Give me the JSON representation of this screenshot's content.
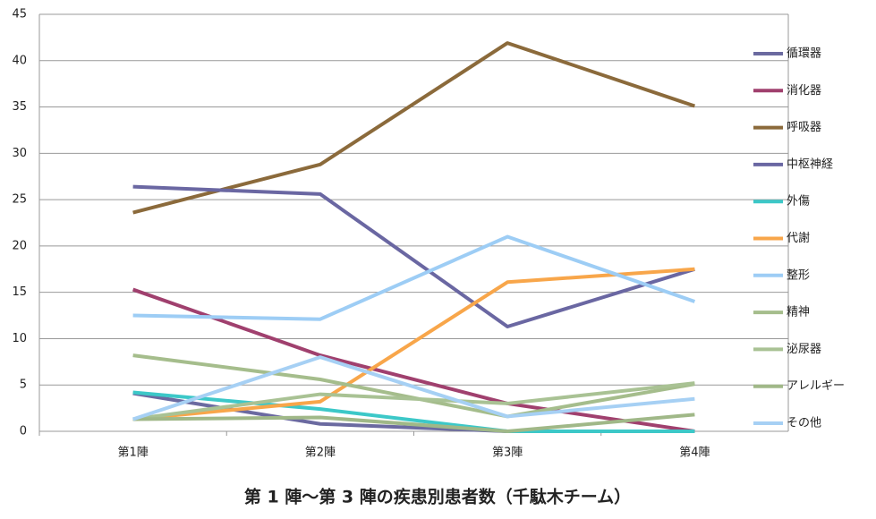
{
  "chart_data": {
    "type": "line",
    "title": "第 1 陣～第 3 陣の疾患別患者数（千駄木チーム）",
    "categories": [
      "第1陣",
      "第2陣",
      "第3陣",
      "第4陣"
    ],
    "series": [
      {
        "name": "循環器",
        "color": "#6b6aa0",
        "values": [
          4.1,
          0.8,
          0,
          0
        ]
      },
      {
        "name": "消化器",
        "color": "#a0406e",
        "values": [
          15.3,
          8.2,
          3.0,
          0
        ]
      },
      {
        "name": "呼吸器",
        "color": "#8b6a3b",
        "values": [
          23.6,
          28.8,
          41.9,
          35.1
        ]
      },
      {
        "name": "中枢神経",
        "color": "#6a67a2",
        "values": [
          26.4,
          25.6,
          11.3,
          17.5
        ]
      },
      {
        "name": "外傷",
        "color": "#3cc8c8",
        "values": [
          4.2,
          2.4,
          0,
          0
        ]
      },
      {
        "name": "代謝",
        "color": "#f8a64a",
        "values": [
          1.3,
          3.2,
          16.1,
          17.5
        ]
      },
      {
        "name": "整形",
        "color": "#9dcdf5",
        "values": [
          12.5,
          12.1,
          21.0,
          14.0
        ]
      },
      {
        "name": "精神",
        "color": "#a5bd8c",
        "values": [
          8.2,
          5.6,
          1.6,
          5.1
        ]
      },
      {
        "name": "泌尿器",
        "color": "#a9c294",
        "values": [
          1.3,
          4.0,
          3.0,
          5.2
        ]
      },
      {
        "name": "アレルギー",
        "color": "#a0b888",
        "values": [
          1.3,
          1.5,
          0,
          1.8
        ]
      },
      {
        "name": "その他",
        "color": "#a6d0f4",
        "values": [
          1.3,
          8.0,
          1.6,
          3.5
        ]
      }
    ],
    "ylim": [
      0,
      45
    ],
    "yticks": [
      0,
      5,
      10,
      15,
      20,
      25,
      30,
      35,
      40,
      45
    ],
    "grid": true,
    "legend": "right"
  }
}
